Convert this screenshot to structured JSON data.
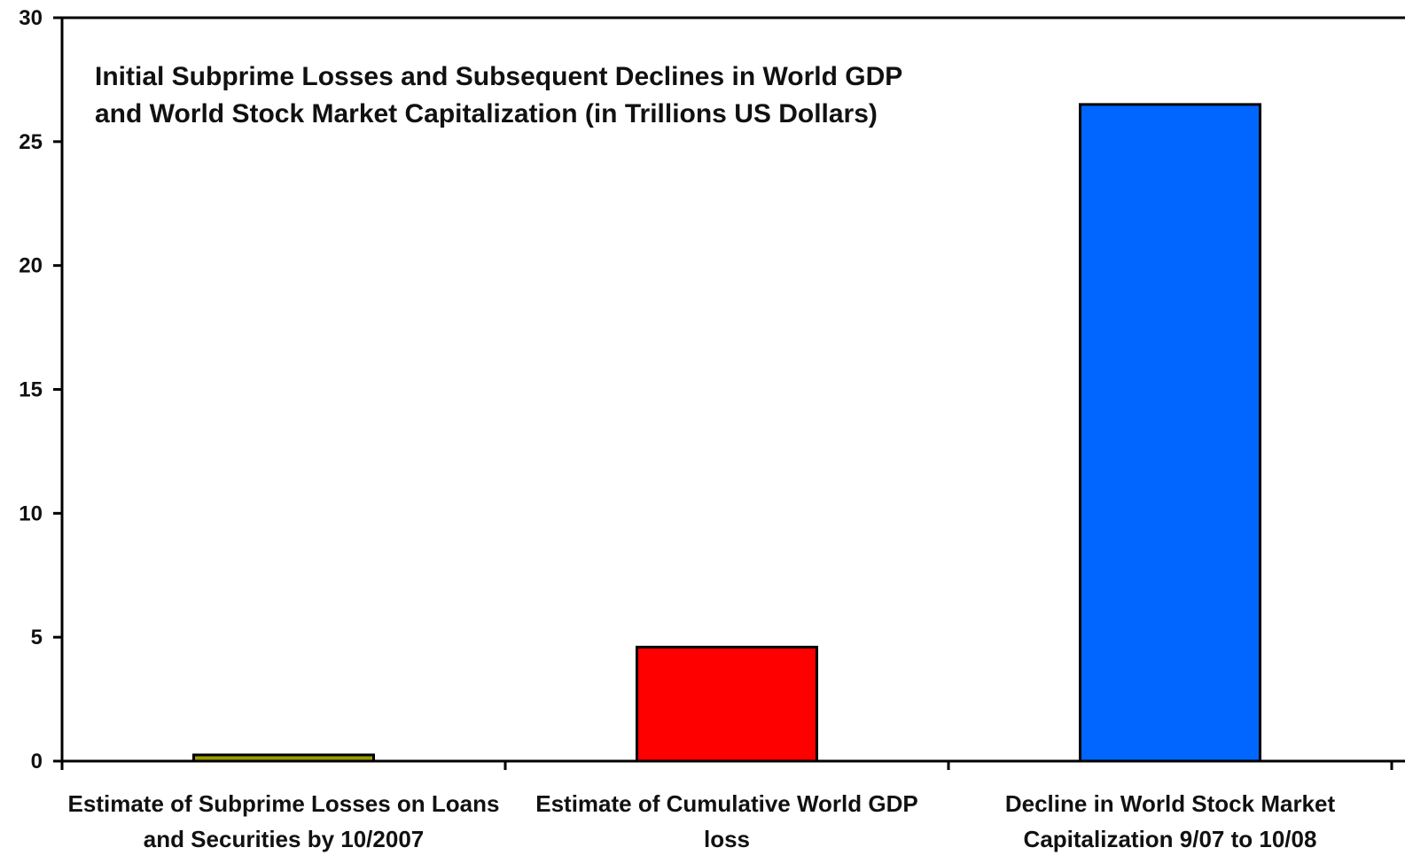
{
  "chart_data": {
    "type": "bar",
    "title_lines": [
      "Initial Subprime Losses and Subsequent Declines in World GDP",
      "and World Stock Market Capitalization (in Trillions US Dollars)"
    ],
    "categories": [
      [
        "Estimate of Subprime Losses on Loans",
        "and Securities by 10/2007"
      ],
      [
        "Estimate of Cumulative World GDP",
        "loss"
      ],
      [
        "Decline in World Stock Market",
        "Capitalization 9/07 to 10/08"
      ]
    ],
    "values": [
      0.25,
      4.6,
      26.5
    ],
    "colors": [
      "#9a9a00",
      "#ff0000",
      "#0066ff"
    ],
    "ylim": [
      0,
      30
    ],
    "yticks": [
      0,
      5,
      10,
      15,
      20,
      25,
      30
    ],
    "xlabel": "",
    "ylabel": "",
    "grid": false
  }
}
